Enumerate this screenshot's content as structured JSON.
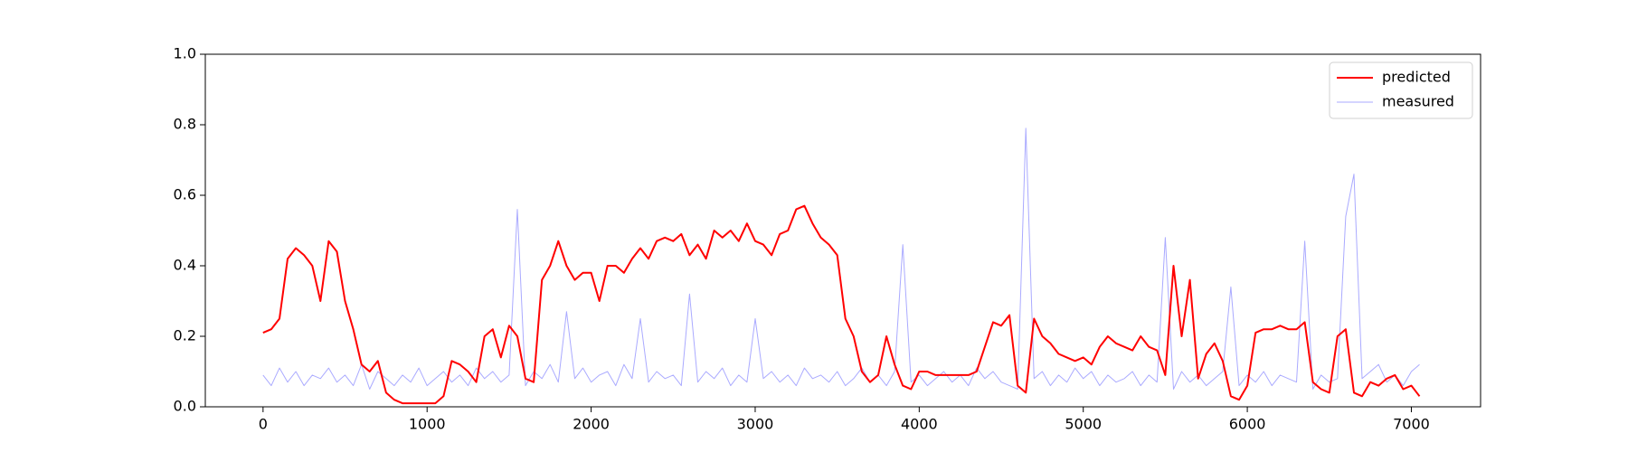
{
  "chart_data": {
    "type": "line",
    "x": [
      0,
      50,
      100,
      150,
      200,
      250,
      300,
      350,
      400,
      450,
      500,
      550,
      600,
      650,
      700,
      750,
      800,
      850,
      900,
      950,
      1000,
      1050,
      1100,
      1150,
      1200,
      1250,
      1300,
      1350,
      1400,
      1450,
      1500,
      1550,
      1600,
      1650,
      1700,
      1750,
      1800,
      1850,
      1900,
      1950,
      2000,
      2050,
      2100,
      2150,
      2200,
      2250,
      2300,
      2350,
      2400,
      2450,
      2500,
      2550,
      2600,
      2650,
      2700,
      2750,
      2800,
      2850,
      2900,
      2950,
      3000,
      3050,
      3100,
      3150,
      3200,
      3250,
      3300,
      3350,
      3400,
      3450,
      3500,
      3550,
      3600,
      3650,
      3700,
      3750,
      3800,
      3850,
      3900,
      3950,
      4000,
      4050,
      4100,
      4150,
      4200,
      4250,
      4300,
      4350,
      4400,
      4450,
      4500,
      4550,
      4600,
      4650,
      4700,
      4750,
      4800,
      4850,
      4900,
      4950,
      5000,
      5050,
      5100,
      5150,
      5200,
      5250,
      5300,
      5350,
      5400,
      5450,
      5500,
      5550,
      5600,
      5650,
      5700,
      5750,
      5800,
      5850,
      5900,
      5950,
      6000,
      6050,
      6100,
      6150,
      6200,
      6250,
      6300,
      6350,
      6400,
      6450,
      6500,
      6550,
      6600,
      6650,
      6700,
      6750,
      6800,
      6850,
      6900,
      6950,
      7000,
      7050
    ],
    "series": [
      {
        "name": "predicted",
        "color": "#ff0000",
        "width": 2,
        "values": [
          0.21,
          0.22,
          0.25,
          0.42,
          0.45,
          0.43,
          0.4,
          0.3,
          0.47,
          0.44,
          0.3,
          0.22,
          0.12,
          0.1,
          0.13,
          0.04,
          0.02,
          0.01,
          0.01,
          0.01,
          0.01,
          0.01,
          0.03,
          0.13,
          0.12,
          0.1,
          0.07,
          0.2,
          0.22,
          0.14,
          0.23,
          0.2,
          0.08,
          0.07,
          0.36,
          0.4,
          0.47,
          0.4,
          0.36,
          0.38,
          0.38,
          0.3,
          0.4,
          0.4,
          0.38,
          0.42,
          0.45,
          0.42,
          0.47,
          0.48,
          0.47,
          0.49,
          0.43,
          0.46,
          0.42,
          0.5,
          0.48,
          0.5,
          0.47,
          0.52,
          0.47,
          0.46,
          0.43,
          0.49,
          0.5,
          0.56,
          0.57,
          0.52,
          0.48,
          0.46,
          0.43,
          0.25,
          0.2,
          0.1,
          0.07,
          0.09,
          0.2,
          0.12,
          0.06,
          0.05,
          0.1,
          0.1,
          0.09,
          0.09,
          0.09,
          0.09,
          0.09,
          0.1,
          0.17,
          0.24,
          0.23,
          0.26,
          0.06,
          0.04,
          0.25,
          0.2,
          0.18,
          0.15,
          0.14,
          0.13,
          0.14,
          0.12,
          0.17,
          0.2,
          0.18,
          0.17,
          0.16,
          0.2,
          0.17,
          0.16,
          0.09,
          0.4,
          0.2,
          0.36,
          0.08,
          0.15,
          0.18,
          0.13,
          0.03,
          0.02,
          0.06,
          0.21,
          0.22,
          0.22,
          0.23,
          0.22,
          0.22,
          0.24,
          0.07,
          0.05,
          0.04,
          0.2,
          0.22,
          0.04,
          0.03,
          0.07,
          0.06,
          0.08,
          0.09,
          0.05,
          0.06,
          0.03
        ]
      },
      {
        "name": "measured",
        "color": "#aaaaff",
        "width": 1,
        "values": [
          0.09,
          0.06,
          0.11,
          0.07,
          0.1,
          0.06,
          0.09,
          0.08,
          0.11,
          0.07,
          0.09,
          0.06,
          0.12,
          0.05,
          0.1,
          0.08,
          0.06,
          0.09,
          0.07,
          0.11,
          0.06,
          0.08,
          0.1,
          0.07,
          0.09,
          0.06,
          0.11,
          0.08,
          0.1,
          0.07,
          0.09,
          0.56,
          0.06,
          0.1,
          0.08,
          0.12,
          0.07,
          0.27,
          0.08,
          0.11,
          0.07,
          0.09,
          0.1,
          0.06,
          0.12,
          0.08,
          0.25,
          0.07,
          0.1,
          0.08,
          0.09,
          0.06,
          0.32,
          0.07,
          0.1,
          0.08,
          0.11,
          0.06,
          0.09,
          0.07,
          0.25,
          0.08,
          0.1,
          0.07,
          0.09,
          0.06,
          0.11,
          0.08,
          0.09,
          0.07,
          0.1,
          0.06,
          0.08,
          0.11,
          0.07,
          0.09,
          0.06,
          0.1,
          0.46,
          0.07,
          0.09,
          0.06,
          0.08,
          0.1,
          0.07,
          0.09,
          0.06,
          0.11,
          0.08,
          0.1,
          0.07,
          0.06,
          0.05,
          0.79,
          0.08,
          0.1,
          0.06,
          0.09,
          0.07,
          0.11,
          0.08,
          0.1,
          0.06,
          0.09,
          0.07,
          0.08,
          0.1,
          0.06,
          0.09,
          0.07,
          0.48,
          0.05,
          0.1,
          0.07,
          0.09,
          0.06,
          0.08,
          0.1,
          0.34,
          0.06,
          0.09,
          0.07,
          0.1,
          0.06,
          0.09,
          0.08,
          0.07,
          0.47,
          0.05,
          0.09,
          0.07,
          0.08,
          0.54,
          0.66,
          0.08,
          0.1,
          0.12,
          0.07,
          0.09,
          0.06,
          0.1,
          0.12
        ]
      }
    ],
    "xlim": [
      -352,
      7422
    ],
    "xticks": [
      0,
      1000,
      2000,
      3000,
      4000,
      5000,
      6000,
      7000
    ],
    "ylim": [
      0,
      1
    ],
    "yticks": [
      {
        "value": 0,
        "label": "0.0"
      },
      0.2,
      0.4,
      0.6,
      0.8,
      {
        "value": 1,
        "label": "1.0"
      }
    ],
    "legend": "upper right"
  }
}
